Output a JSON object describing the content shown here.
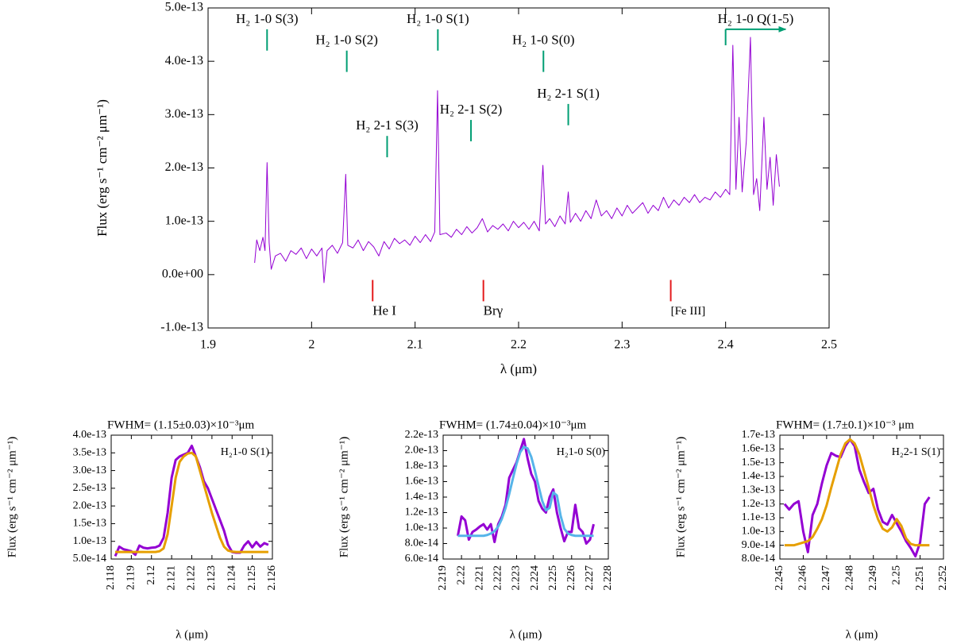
{
  "chart_data": [
    {
      "type": "line",
      "xlabel": "λ (μm)",
      "ylabel": "Flux (erg s⁻¹ cm⁻² μm⁻¹)",
      "xlim": [
        1.9,
        2.5
      ],
      "ylim": [
        -1e-13,
        5e-13
      ],
      "xticks": [
        1.9,
        2,
        2.1,
        2.2,
        2.3,
        2.4,
        2.5
      ],
      "yticks": [
        {
          "value": -1e-13,
          "label": "-1.0e-13"
        },
        {
          "value": 0,
          "label": "0.0e+00"
        },
        {
          "value": 1e-13,
          "label": "1.0e-13"
        },
        {
          "value": 2e-13,
          "label": "2.0e-13"
        },
        {
          "value": 3e-13,
          "label": "3.0e-13"
        },
        {
          "value": 4e-13,
          "label": "4.0e-13"
        },
        {
          "value": 5e-13,
          "label": "5.0e-13"
        }
      ],
      "x": [
        1.945,
        1.947,
        1.95,
        1.953,
        1.955,
        1.957,
        1.959,
        1.961,
        1.965,
        1.97,
        1.975,
        1.98,
        1.985,
        1.99,
        1.995,
        2.0,
        2.005,
        2.01,
        2.012,
        2.015,
        2.02,
        2.025,
        2.03,
        2.033,
        2.035,
        2.04,
        2.045,
        2.05,
        2.055,
        2.06,
        2.065,
        2.07,
        2.075,
        2.08,
        2.085,
        2.09,
        2.095,
        2.1,
        2.105,
        2.11,
        2.115,
        2.119,
        2.1217,
        2.124,
        2.13,
        2.135,
        2.14,
        2.145,
        2.15,
        2.155,
        2.16,
        2.165,
        2.17,
        2.175,
        2.18,
        2.185,
        2.19,
        2.195,
        2.2,
        2.205,
        2.21,
        2.215,
        2.22,
        2.2235,
        2.226,
        2.23,
        2.235,
        2.24,
        2.245,
        2.248,
        2.25,
        2.255,
        2.26,
        2.265,
        2.27,
        2.275,
        2.28,
        2.285,
        2.29,
        2.295,
        2.3,
        2.305,
        2.31,
        2.315,
        2.32,
        2.325,
        2.33,
        2.335,
        2.34,
        2.345,
        2.35,
        2.355,
        2.36,
        2.365,
        2.37,
        2.375,
        2.38,
        2.385,
        2.39,
        2.395,
        2.4,
        2.404,
        2.407,
        2.41,
        2.413,
        2.416,
        2.42,
        2.424,
        2.427,
        2.43,
        2.433,
        2.437,
        2.44,
        2.443,
        2.446,
        2.449,
        2.452
      ],
      "series": [
        {
          "color": "#9400d3",
          "values": [
            2.2e-14,
            6.5e-14,
            4.5e-14,
            7e-14,
            4.5e-14,
            2.1e-13,
            6e-14,
            1e-14,
            3.5e-14,
            4e-14,
            2.5e-14,
            4.5e-14,
            3.8e-14,
            5e-14,
            3e-14,
            4.8e-14,
            3.5e-14,
            5e-14,
            -1.5e-14,
            4.5e-14,
            5.5e-14,
            4e-14,
            6e-14,
            1.88e-13,
            5.5e-14,
            5e-14,
            6.5e-14,
            4.5e-14,
            6.2e-14,
            5.2e-14,
            3.5e-14,
            6.2e-14,
            4.8e-14,
            6.8e-14,
            5.8e-14,
            6.5e-14,
            5.5e-14,
            7.2e-14,
            6e-14,
            7.5e-14,
            6.2e-14,
            8e-14,
            3.45e-13,
            7.5e-14,
            7.8e-14,
            7e-14,
            8.5e-14,
            7.5e-14,
            9e-14,
            7.8e-14,
            8.8e-14,
            1.05e-13,
            8e-14,
            9.2e-14,
            8.5e-14,
            9.5e-14,
            8.2e-14,
            1e-13,
            8.8e-14,
            9.8e-14,
            8.5e-14,
            1e-13,
            8.2e-14,
            2.05e-13,
            9.5e-14,
            1.05e-13,
            9e-14,
            1.1e-13,
            9.5e-14,
            1.55e-13,
            9.8e-14,
            1.15e-13,
            1e-13,
            1.2e-13,
            1.05e-13,
            1.4e-13,
            1.1e-13,
            1.2e-13,
            1.05e-13,
            1.25e-13,
            1.1e-13,
            1.3e-13,
            1.15e-13,
            1.25e-13,
            1.35e-13,
            1.15e-13,
            1.3e-13,
            1.2e-13,
            1.45e-13,
            1.25e-13,
            1.4e-13,
            1.3e-13,
            1.45e-13,
            1.35e-13,
            1.5e-13,
            1.35e-13,
            1.45e-13,
            1.4e-13,
            1.55e-13,
            1.45e-13,
            1.6e-13,
            1.5e-13,
            4.3e-13,
            1.6e-13,
            2.95e-13,
            1.55e-13,
            2.5e-13,
            4.45e-13,
            1.5e-13,
            1.8e-13,
            1.2e-13,
            2.95e-13,
            1.6e-13,
            2.2e-13,
            1.3e-13,
            2.25e-13,
            1.65e-13
          ]
        }
      ],
      "annotations": [
        {
          "text": "H₂ 1-0 S(3)",
          "x": 1.957,
          "y": [
            4.2e-13,
            4.6e-13
          ],
          "color": "#009e73"
        },
        {
          "text": "H₂ 1-0 S(2)",
          "x": 2.034,
          "y": [
            3.8e-13,
            4.2e-13
          ],
          "color": "#009e73"
        },
        {
          "text": "H₂ 1-0 S(1)",
          "x": 2.122,
          "y": [
            4.2e-13,
            4.6e-13
          ],
          "color": "#009e73"
        },
        {
          "text": "H₂ 1-0 S(0)",
          "x": 2.224,
          "y": [
            3.8e-13,
            4.2e-13
          ],
          "color": "#009e73"
        },
        {
          "text": "H₂ 1-0 Q(1-5)",
          "x": 2.4,
          "y": [
            4.3e-13,
            4.6e-13
          ],
          "arrow_to": 2.458,
          "color": "#009e73"
        },
        {
          "text": "H₂ 2-1 S(3)",
          "x": 2.073,
          "y": [
            2.2e-13,
            2.6e-13
          ],
          "color": "#009e73"
        },
        {
          "text": "H₂ 2-1 S(2)",
          "x": 2.154,
          "y": [
            2.5e-13,
            2.9e-13
          ],
          "color": "#009e73"
        },
        {
          "text": "H₂ 2-1 S(1)",
          "x": 2.248,
          "y": [
            2.8e-13,
            3.2e-13
          ],
          "color": "#009e73"
        },
        {
          "text": "He I",
          "x": 2.059,
          "y": [
            -5e-14,
            -1e-14
          ],
          "color": "#e41a1c"
        },
        {
          "text": "Brγ",
          "x": 2.166,
          "y": [
            -5e-14,
            -1e-14
          ],
          "color": "#e41a1c"
        },
        {
          "text": "[Fe III]",
          "x": 2.347,
          "y": [
            -5e-14,
            -1e-14
          ],
          "color": "#e41a1c"
        }
      ]
    },
    {
      "type": "line",
      "title": "FWHM= (1.15±0.03)×10⁻³μm",
      "label": "H₂1-0 S(1)",
      "xlabel": "λ (μm)",
      "ylabel": "Flux (erg s⁻¹ cm⁻² μm⁻¹)",
      "xlim": [
        2.118,
        2.126
      ],
      "ylim": [
        5e-14,
        4e-13
      ],
      "xticks": [
        2.118,
        2.119,
        2.12,
        2.121,
        2.122,
        2.123,
        2.124,
        2.125,
        2.126
      ],
      "yticks": [
        {
          "value": 5e-14,
          "label": "5.0e-14"
        },
        {
          "value": 1e-13,
          "label": "1.0e-13"
        },
        {
          "value": 1.5e-13,
          "label": "1.5e-13"
        },
        {
          "value": 2e-13,
          "label": "2.0e-13"
        },
        {
          "value": 2.5e-13,
          "label": "2.5e-13"
        },
        {
          "value": 3e-13,
          "label": "3.0e-13"
        },
        {
          "value": 3.5e-13,
          "label": "3.5e-13"
        },
        {
          "value": 4e-13,
          "label": "4.0e-13"
        }
      ],
      "x": [
        2.1182,
        2.1184,
        2.1186,
        2.1188,
        2.119,
        2.1192,
        2.1194,
        2.1196,
        2.1198,
        2.12,
        2.1202,
        2.1204,
        2.1206,
        2.1208,
        2.121,
        2.1212,
        2.1214,
        2.1216,
        2.1218,
        2.122,
        2.1222,
        2.1224,
        2.1226,
        2.1228,
        2.123,
        2.1232,
        2.1234,
        2.1236,
        2.1238,
        2.124,
        2.1242,
        2.1244,
        2.1246,
        2.1248,
        2.125,
        2.1252,
        2.1254,
        2.1256,
        2.1258
      ],
      "series": [
        {
          "color": "#9400d3",
          "values": [
            5.8e-14,
            8.5e-14,
            7.8e-14,
            7.5e-14,
            7.2e-14,
            6.2e-14,
            8.8e-14,
            8.2e-14,
            8e-14,
            8.2e-14,
            8.3e-14,
            8.8e-14,
            1.1e-13,
            1.8e-13,
            2.8e-13,
            3.3e-13,
            3.4e-13,
            3.45e-13,
            3.5e-13,
            3.7e-13,
            3.4e-13,
            3.1e-13,
            2.7e-13,
            2.5e-13,
            2.2e-13,
            1.9e-13,
            1.6e-13,
            1.3e-13,
            9e-14,
            7e-14,
            6.8e-14,
            6.8e-14,
            8.8e-14,
            1e-13,
            8.3e-14,
            9.8e-14,
            8.5e-14,
            9.5e-14,
            9e-14
          ]
        },
        {
          "color": "#e69f00",
          "values": [
            7e-14,
            7e-14,
            7e-14,
            7e-14,
            7e-14,
            7e-14,
            7e-14,
            7e-14,
            7e-14,
            7e-14,
            7e-14,
            7.2e-14,
            8e-14,
            1.2e-13,
            2e-13,
            2.8e-13,
            3.25e-13,
            3.4e-13,
            3.48e-13,
            3.5e-13,
            3.4e-13,
            3e-13,
            2.6e-13,
            2.2e-13,
            1.8e-13,
            1.45e-13,
            1.1e-13,
            8.5e-14,
            7.4e-14,
            7.1e-14,
            7e-14,
            7e-14,
            7e-14,
            7e-14,
            7e-14,
            7e-14,
            7e-14,
            7e-14,
            7e-14
          ]
        }
      ]
    },
    {
      "type": "line",
      "title": "FWHM= (1.74±0.04)×10⁻³μm",
      "label": "H₂1-0 S(0)",
      "xlabel": "λ (μm)",
      "ylabel": "Flux (erg s⁻¹ cm⁻² μm⁻¹)",
      "xlim": [
        2.219,
        2.228
      ],
      "ylim": [
        6e-14,
        2.2e-13
      ],
      "xticks": [
        2.219,
        2.22,
        2.221,
        2.222,
        2.223,
        2.224,
        2.225,
        2.226,
        2.227,
        2.228
      ],
      "yticks": [
        {
          "value": 6e-14,
          "label": "6.0e-14"
        },
        {
          "value": 8e-14,
          "label": "8.0e-14"
        },
        {
          "value": 1e-13,
          "label": "1.0e-13"
        },
        {
          "value": 1.2e-13,
          "label": "1.2e-13"
        },
        {
          "value": 1.4e-13,
          "label": "1.4e-13"
        },
        {
          "value": 1.6e-13,
          "label": "1.6e-13"
        },
        {
          "value": 1.8e-13,
          "label": "1.8e-13"
        },
        {
          "value": 2e-13,
          "label": "2.0e-13"
        },
        {
          "value": 2.2e-13,
          "label": "2.2e-13"
        }
      ],
      "x": [
        2.2198,
        2.22,
        2.2202,
        2.2204,
        2.2206,
        2.2208,
        2.221,
        2.2212,
        2.2214,
        2.2216,
        2.2218,
        2.222,
        2.2222,
        2.2224,
        2.2226,
        2.2228,
        2.223,
        2.2232,
        2.2234,
        2.2236,
        2.2238,
        2.224,
        2.2242,
        2.2244,
        2.2246,
        2.2248,
        2.225,
        2.2252,
        2.2254,
        2.2256,
        2.2258,
        2.226,
        2.2262,
        2.2264,
        2.2266,
        2.2268,
        2.227,
        2.2272
      ],
      "series": [
        {
          "color": "#9400d3",
          "values": [
            9e-14,
            1.15e-13,
            1.1e-13,
            8.5e-14,
            9.5e-14,
            9.8e-14,
            1.02e-13,
            1.05e-13,
            9.8e-14,
            1.05e-13,
            8.2e-14,
            1.05e-13,
            1.15e-13,
            1.3e-13,
            1.65e-13,
            1.75e-13,
            1.85e-13,
            2e-13,
            2.15e-13,
            1.9e-13,
            1.7e-13,
            1.6e-13,
            1.35e-13,
            1.25e-13,
            1.2e-13,
            1.4e-13,
            1.5e-13,
            1.2e-13,
            1e-13,
            8.3e-14,
            9.5e-14,
            9.5e-14,
            1.3e-13,
            1e-13,
            9.5e-14,
            8e-14,
            8.5e-14,
            1.05e-13
          ]
        },
        {
          "color": "#56b4e9",
          "values": [
            9e-14,
            9e-14,
            9e-14,
            9e-14,
            9e-14,
            9e-14,
            9e-14,
            9e-14,
            9.1e-14,
            9.3e-14,
            9.6e-14,
            1.02e-13,
            1.12e-13,
            1.26e-13,
            1.44e-13,
            1.64e-13,
            1.83e-13,
            1.98e-13,
            2.05e-13,
            2.03e-13,
            1.92e-13,
            1.74e-13,
            1.54e-13,
            1.35e-13,
            1.23e-13,
            1.26e-13,
            1.46e-13,
            1.42e-13,
            1.16e-13,
            9.9e-14,
            9.3e-14,
            9.1e-14,
            9e-14,
            9e-14,
            9e-14,
            9e-14,
            9e-14,
            9e-14
          ]
        }
      ]
    },
    {
      "type": "line",
      "title": "FWHM= (1.7±0.1)×10⁻³ μm",
      "label": "H₂2-1 S(1)",
      "xlabel": "λ (μm)",
      "ylabel": "Flux (erg s⁻¹ cm⁻² μm⁻¹)",
      "xlim": [
        2.245,
        2.252
      ],
      "ylim": [
        8e-14,
        1.7e-13
      ],
      "xticks": [
        2.245,
        2.246,
        2.247,
        2.248,
        2.249,
        2.25,
        2.251,
        2.252
      ],
      "yticks": [
        {
          "value": 8e-14,
          "label": "8.0e-14"
        },
        {
          "value": 9e-14,
          "label": "9.0e-14"
        },
        {
          "value": 1e-13,
          "label": "1.0e-13"
        },
        {
          "value": 1.1e-13,
          "label": "1.1e-13"
        },
        {
          "value": 1.2e-13,
          "label": "1.2e-13"
        },
        {
          "value": 1.3e-13,
          "label": "1.3e-13"
        },
        {
          "value": 1.4e-13,
          "label": "1.4e-13"
        },
        {
          "value": 1.5e-13,
          "label": "1.5e-13"
        },
        {
          "value": 1.6e-13,
          "label": "1.6e-13"
        },
        {
          "value": 1.7e-13,
          "label": "1.7e-13"
        }
      ],
      "x": [
        2.2452,
        2.2454,
        2.2456,
        2.2458,
        2.246,
        2.2462,
        2.2464,
        2.2466,
        2.2468,
        2.247,
        2.2472,
        2.2474,
        2.2476,
        2.2478,
        2.248,
        2.2482,
        2.2484,
        2.2486,
        2.2488,
        2.249,
        2.2492,
        2.2494,
        2.2496,
        2.2498,
        2.25,
        2.2502,
        2.2504,
        2.2506,
        2.2508,
        2.251,
        2.2512,
        2.2514
      ],
      "series": [
        {
          "color": "#9400d3",
          "values": [
            1.2e-13,
            1.16e-13,
            1.2e-13,
            1.22e-13,
            1e-13,
            8.5e-14,
            1.12e-13,
            1.2e-13,
            1.35e-13,
            1.48e-13,
            1.57e-13,
            1.55e-13,
            1.54e-13,
            1.62e-13,
            1.67e-13,
            1.62e-13,
            1.45e-13,
            1.36e-13,
            1.28e-13,
            1.31e-13,
            1.16e-13,
            1.07e-13,
            1.05e-13,
            1.12e-13,
            1.06e-13,
            1e-13,
            9.3e-14,
            8.8e-14,
            8.2e-14,
            9.2e-14,
            1.2e-13,
            1.25e-13
          ]
        },
        {
          "color": "#e69f00",
          "values": [
            9e-14,
            9e-14,
            9e-14,
            9.1e-14,
            9.2e-14,
            9.3e-14,
            9.6e-14,
            1.02e-13,
            1.09e-13,
            1.19e-13,
            1.32e-13,
            1.44e-13,
            1.56e-13,
            1.64e-13,
            1.67e-13,
            1.64e-13,
            1.56e-13,
            1.44e-13,
            1.32e-13,
            1.19e-13,
            1.09e-13,
            1.02e-13,
            1e-13,
            1.03e-13,
            1.09e-13,
            1.04e-13,
            9.5e-14,
            9.1e-14,
            9e-14,
            9e-14,
            9e-14,
            9e-14
          ]
        }
      ]
    }
  ]
}
